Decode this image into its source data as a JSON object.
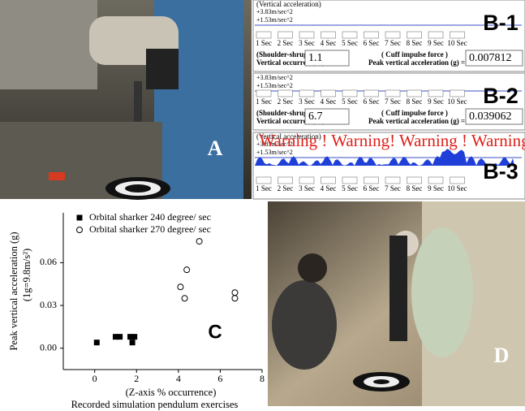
{
  "panel_a": {
    "label": "A"
  },
  "panel_d": {
    "label": "D"
  },
  "b_common": {
    "header": "(Vertical acceleration)",
    "upper": "+3.83m/sec^2",
    "lower": "+1.53m/sec^2",
    "seconds": [
      "1 Sec",
      "2 Sec",
      "3 Sec",
      "4 Sec",
      "5 Sec",
      "6 Sec",
      "7 Sec",
      "8 Sec",
      "9 Sec",
      "10 Sec"
    ],
    "habit": "(Shoulder-shrug habit)",
    "occurred": "Vertical occurred (%) =",
    "cuff": "( Cuff impulse force )",
    "peak": "Peak vertical acceleration (g) ="
  },
  "b_panels": [
    {
      "label": "B-1",
      "occurred_value": "1.1",
      "peak_value": "0.007812"
    },
    {
      "label": "B-2",
      "occurred_value": "6.7",
      "peak_value": "0.039062"
    },
    {
      "label": "B-3",
      "warning": "Warning ! Warning! Warning ! Warning!"
    }
  ],
  "chart_data": {
    "type": "scatter",
    "panel_label": "C",
    "y_label": "Peak vertical acceleration (g)",
    "y_label_2": "(1g=9.8m/s²)",
    "x_label": "(Z-axis % occurrence)",
    "x_label_2": "Recorded simulation pendulum exercises",
    "xlim": [
      -1.5,
      8
    ],
    "xticks": [
      0,
      2,
      4,
      6,
      8
    ],
    "ylim": [
      -0.015,
      0.095
    ],
    "yticks": [
      {
        "value": 0,
        "label": "0.00"
      },
      {
        "value": 0.03,
        "label": "0.03"
      },
      {
        "value": 0.06,
        "label": "0.06"
      }
    ],
    "series": [
      {
        "name": "Orbital sharker 240 degree/ sec",
        "color": "#000000",
        "marker": "square",
        "x": [
          0.1,
          1.0,
          1.2,
          1.7,
          1.8,
          1.9
        ],
        "values": [
          0.004,
          0.008,
          0.008,
          0.008,
          0.004,
          0.008
        ]
      },
      {
        "name": "Orbital sharker 270 degree/ sec",
        "color": "#000000",
        "marker": "circle",
        "x": [
          4.1,
          4.3,
          4.4,
          5.0,
          6.7,
          6.7
        ],
        "values": [
          0.043,
          0.035,
          0.055,
          0.075,
          0.039,
          0.035
        ]
      }
    ]
  }
}
